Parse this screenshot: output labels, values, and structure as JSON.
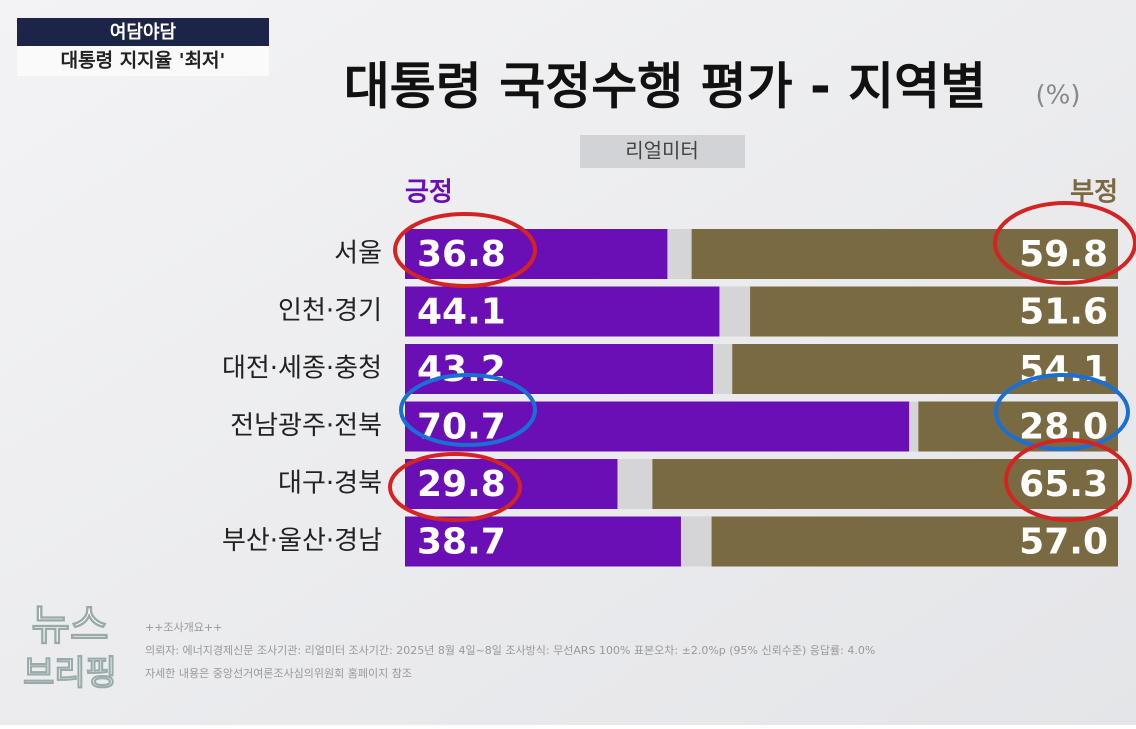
{
  "overlay": {
    "program": "여담야담",
    "headline": "대통령 지지율 '최저'",
    "logo": [
      "뉴스",
      "브리핑"
    ]
  },
  "chart_data": {
    "type": "bar",
    "orientation": "horizontal",
    "title": "대통령 국정수행 평가 - 지역별",
    "unit": "(%)",
    "source": "리얼미터",
    "categories": [
      "서울",
      "인천·경기",
      "대전·세종·충청",
      "전남광주·전북",
      "대구·경북",
      "부산·울산·경남"
    ],
    "xlim": [
      0,
      100
    ],
    "series": [
      {
        "name": "긍정",
        "color": "#6a0fb5",
        "values": [
          36.8,
          44.1,
          43.2,
          70.7,
          29.8,
          38.7
        ],
        "value_labels": [
          "36.8",
          "44.1",
          "43.2",
          "70.7",
          "29.8",
          "38.7"
        ]
      },
      {
        "name": "부정",
        "color": "#7a6a42",
        "values": [
          59.8,
          51.6,
          54.1,
          28.0,
          65.3,
          57.0
        ],
        "value_labels": [
          "59.8",
          "51.6",
          "54.1",
          "28.0",
          "65.3",
          "57.0"
        ]
      }
    ],
    "footnote": [
      "++조사개요++",
      "의뢰자: 에너지경제신문   조사기관: 리얼미터   조사기간: 2025년 8월 4일~8일   조사방식: 무선ARS 100%   표본오차: ±2.0%p (95% 신뢰수준)   응답률: 4.0%",
      "자세한 내용은 중앙선거여론조사심의위원회 홈페이지 참조"
    ]
  }
}
